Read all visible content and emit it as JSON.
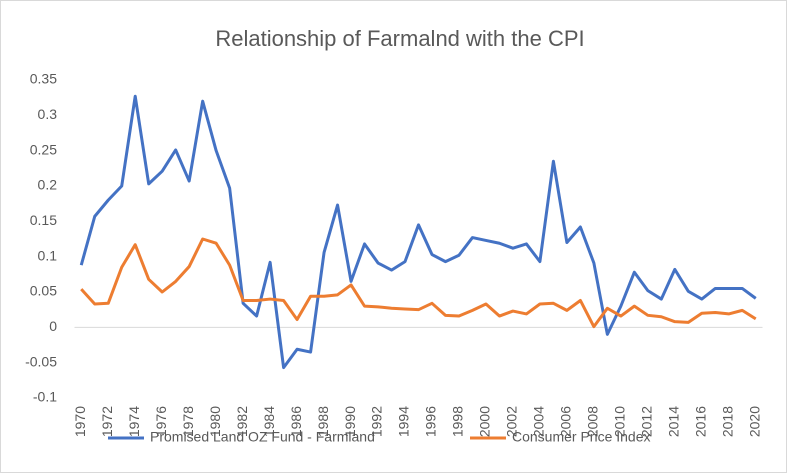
{
  "chart_data": {
    "type": "line",
    "title": "Relationship of Farmalnd with the CPI",
    "categories": [
      "1970",
      null,
      "1972",
      null,
      "1974",
      null,
      "1976",
      null,
      "1978",
      null,
      "1980",
      null,
      "1982",
      null,
      "1984",
      null,
      "1986",
      null,
      "1988",
      null,
      "1990",
      null,
      "1992",
      null,
      "1994",
      null,
      "1996",
      null,
      "1998",
      null,
      "2000",
      null,
      "2002",
      null,
      "2004",
      null,
      "2006",
      null,
      "2008",
      null,
      "2010",
      null,
      "2012",
      null,
      "2014",
      null,
      "2016",
      null,
      "2018",
      null,
      "2020"
    ],
    "series": [
      {
        "name": "Promised Land OZ Fund - Farmland",
        "color": "#4472c4",
        "values": [
          0.088,
          0.157,
          0.18,
          0.2,
          0.327,
          0.203,
          0.221,
          0.251,
          0.207,
          0.32,
          0.25,
          0.197,
          0.034,
          0.016,
          0.092,
          -0.057,
          -0.031,
          -0.035,
          0.106,
          0.173,
          0.065,
          0.118,
          0.091,
          0.081,
          0.093,
          0.145,
          0.103,
          0.093,
          0.102,
          0.127,
          0.123,
          0.119,
          0.112,
          0.118,
          0.093,
          0.235,
          0.12,
          0.142,
          0.091,
          -0.01,
          0.03,
          0.078,
          0.052,
          0.04,
          0.082,
          0.051,
          0.04,
          0.055,
          0.055,
          0.055,
          0.041
        ]
      },
      {
        "name": "Consumer Price Index",
        "color": "#ed7d31",
        "values": [
          0.054,
          0.033,
          0.034,
          0.085,
          0.117,
          0.068,
          0.05,
          0.065,
          0.086,
          0.125,
          0.119,
          0.088,
          0.038,
          0.038,
          0.04,
          0.038,
          0.011,
          0.044,
          0.044,
          0.046,
          0.06,
          0.03,
          0.029,
          0.027,
          0.026,
          0.025,
          0.034,
          0.017,
          0.016,
          0.024,
          0.033,
          0.016,
          0.023,
          0.019,
          0.033,
          0.034,
          0.024,
          0.038,
          0.001,
          0.027,
          0.016,
          0.03,
          0.017,
          0.015,
          0.008,
          0.007,
          0.02,
          0.021,
          0.019,
          0.024,
          0.012
        ]
      }
    ],
    "ylim": [
      -0.1,
      0.35
    ],
    "yticks": [
      -0.1,
      -0.05,
      0,
      0.05,
      0.1,
      0.15,
      0.2,
      0.25,
      0.3,
      0.35
    ],
    "grid": false,
    "legend": "bottom"
  }
}
